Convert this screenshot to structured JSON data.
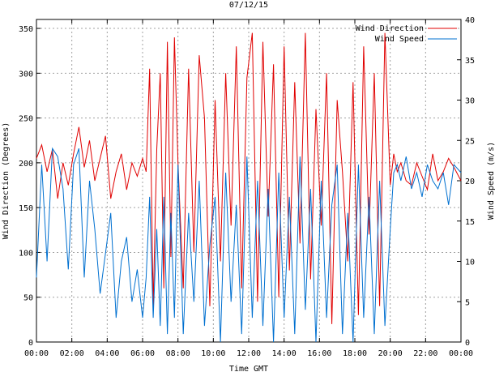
{
  "chart_data": {
    "type": "line",
    "title": "07/12/15",
    "xlabel": "Time GMT",
    "ylabel_left": "Wind Direction (Degrees)",
    "ylabel_right": "Wind Speed (m/s)",
    "xlim": [
      0,
      24
    ],
    "ylim_left": [
      0,
      360
    ],
    "ylim_right": [
      0,
      40
    ],
    "x_tick_labels": [
      "00:00",
      "02:00",
      "04:00",
      "06:00",
      "08:00",
      "10:00",
      "12:00",
      "14:00",
      "16:00",
      "18:00",
      "20:00",
      "22:00",
      "00:00"
    ],
    "y_left_ticks": [
      0,
      50,
      100,
      150,
      200,
      250,
      300,
      350
    ],
    "y_right_ticks": [
      0,
      5,
      10,
      15,
      20,
      25,
      30,
      35,
      40
    ],
    "grid": true,
    "legend": "top-right",
    "series": [
      {
        "name": "Wind Direction",
        "axis": "left",
        "color": "#e00000",
        "x": [
          0.0,
          0.3,
          0.6,
          0.9,
          1.2,
          1.5,
          1.8,
          2.1,
          2.4,
          2.7,
          3.0,
          3.3,
          3.6,
          3.9,
          4.2,
          4.5,
          4.8,
          5.1,
          5.4,
          5.7,
          6.0,
          6.2,
          6.4,
          6.6,
          6.8,
          7.0,
          7.2,
          7.4,
          7.6,
          7.8,
          8.0,
          8.3,
          8.6,
          8.9,
          9.2,
          9.5,
          9.8,
          10.1,
          10.4,
          10.7,
          11.0,
          11.3,
          11.6,
          11.9,
          12.2,
          12.5,
          12.8,
          13.1,
          13.4,
          13.7,
          14.0,
          14.3,
          14.6,
          14.9,
          15.2,
          15.5,
          15.8,
          16.1,
          16.4,
          16.7,
          17.0,
          17.3,
          17.6,
          17.9,
          18.2,
          18.5,
          18.8,
          19.1,
          19.4,
          19.7,
          20.0,
          20.2,
          20.4,
          20.6,
          20.9,
          21.2,
          21.5,
          21.8,
          22.1,
          22.4,
          22.7,
          23.0,
          23.3,
          23.6,
          24.0
        ],
        "values": [
          205,
          220,
          190,
          215,
          160,
          200,
          175,
          210,
          240,
          195,
          225,
          180,
          205,
          230,
          160,
          190,
          210,
          170,
          200,
          185,
          205,
          190,
          305,
          40,
          215,
          300,
          60,
          335,
          95,
          340,
          200,
          60,
          305,
          100,
          320,
          250,
          40,
          270,
          90,
          300,
          130,
          330,
          60,
          295,
          345,
          45,
          335,
          140,
          310,
          50,
          330,
          80,
          290,
          110,
          345,
          70,
          260,
          130,
          300,
          20,
          270,
          190,
          90,
          290,
          30,
          330,
          120,
          300,
          40,
          345,
          175,
          210,
          190,
          200,
          180,
          175,
          200,
          185,
          170,
          210,
          180,
          190,
          205,
          195,
          180
        ]
      },
      {
        "name": "Wind Speed",
        "axis": "right",
        "color": "#0070d0",
        "x": [
          0.0,
          0.3,
          0.6,
          0.9,
          1.2,
          1.5,
          1.8,
          2.1,
          2.4,
          2.7,
          3.0,
          3.3,
          3.6,
          3.9,
          4.2,
          4.5,
          4.8,
          5.1,
          5.4,
          5.7,
          6.0,
          6.2,
          6.4,
          6.6,
          6.8,
          7.0,
          7.2,
          7.4,
          7.6,
          7.8,
          8.0,
          8.3,
          8.6,
          8.9,
          9.2,
          9.5,
          9.8,
          10.1,
          10.4,
          10.7,
          11.0,
          11.3,
          11.6,
          11.9,
          12.2,
          12.5,
          12.8,
          13.1,
          13.4,
          13.7,
          14.0,
          14.3,
          14.6,
          14.9,
          15.2,
          15.5,
          15.8,
          16.1,
          16.4,
          16.7,
          17.0,
          17.3,
          17.6,
          17.9,
          18.2,
          18.5,
          18.8,
          19.1,
          19.4,
          19.7,
          20.0,
          20.2,
          20.4,
          20.6,
          20.9,
          21.2,
          21.5,
          21.8,
          22.1,
          22.4,
          22.7,
          23.0,
          23.3,
          23.6,
          24.0
        ],
        "values": [
          8,
          22,
          10,
          24,
          23,
          19,
          9,
          22,
          24,
          8,
          20,
          14,
          6,
          11,
          16,
          3,
          10,
          13,
          5,
          9,
          3,
          8,
          18,
          3,
          14,
          2,
          18,
          1,
          16,
          3,
          22,
          1,
          16,
          5,
          20,
          2,
          12,
          18,
          0,
          21,
          5,
          17,
          1,
          23,
          3,
          20,
          2,
          19,
          0,
          21,
          3,
          18,
          1,
          23,
          4,
          19,
          0,
          20,
          3,
          17,
          22,
          1,
          16,
          0,
          22,
          3,
          18,
          1,
          20,
          2,
          14,
          21,
          22,
          20,
          23,
          19,
          21,
          18,
          22,
          20,
          19,
          21,
          17,
          22,
          21
        ]
      }
    ]
  }
}
